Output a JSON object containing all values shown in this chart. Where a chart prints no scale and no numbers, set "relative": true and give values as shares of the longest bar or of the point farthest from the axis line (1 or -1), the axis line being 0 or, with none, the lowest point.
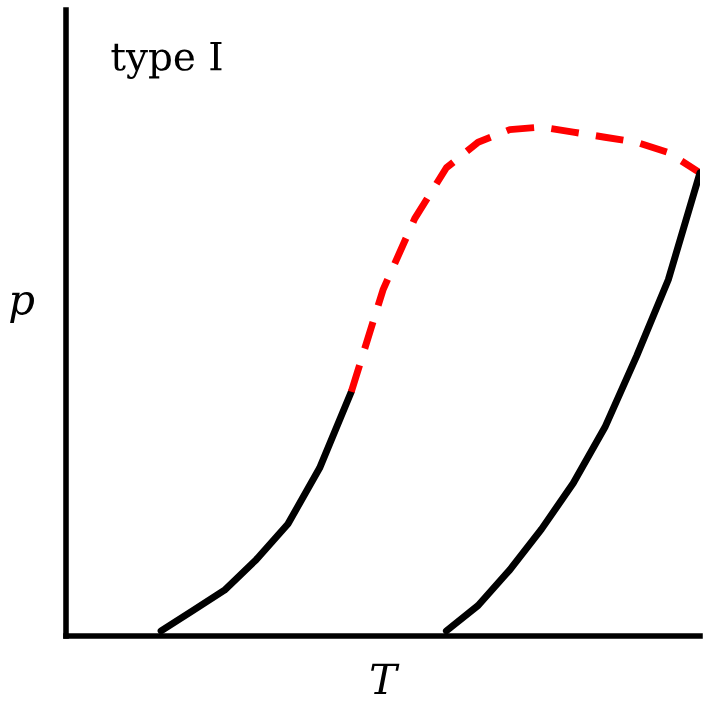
{
  "chart_data": {
    "type": "line",
    "relative": true,
    "xlabel": "T",
    "ylabel": "p",
    "annotations": [
      "type I"
    ],
    "categories": [
      null,
      null,
      null,
      null,
      null,
      null,
      null,
      null,
      null,
      null,
      null,
      null,
      null,
      null,
      null,
      null,
      null,
      null,
      null,
      null,
      null
    ],
    "series": [
      {
        "color": "#000000",
        "line_style": "solid",
        "values": [
          null,
          null,
          null,
          0.01,
          0.05,
          0.09,
          0.15,
          0.22,
          0.33,
          0.48,
          null,
          null,
          null,
          null,
          null,
          null,
          null,
          null,
          null,
          null,
          null
        ]
      },
      {
        "color": "#ff0000",
        "line_style": "dashed",
        "values": [
          null,
          null,
          null,
          null,
          null,
          null,
          null,
          null,
          null,
          0.48,
          0.68,
          0.82,
          0.92,
          0.97,
          0.995,
          1.0,
          0.99,
          0.98,
          0.97,
          0.95,
          0.91
        ]
      },
      {
        "color": "#000000",
        "line_style": "solid",
        "values": [
          null,
          null,
          null,
          null,
          null,
          null,
          null,
          null,
          null,
          null,
          null,
          null,
          0.01,
          0.06,
          0.13,
          0.21,
          0.3,
          0.41,
          0.55,
          0.7,
          0.91
        ]
      }
    ]
  }
}
